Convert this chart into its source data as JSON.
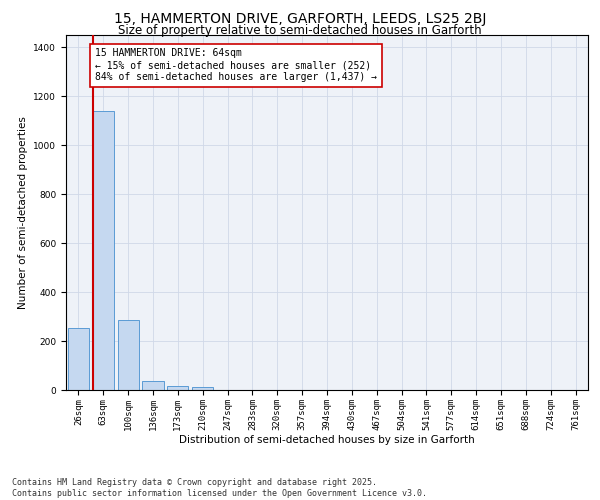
{
  "title_line1": "15, HAMMERTON DRIVE, GARFORTH, LEEDS, LS25 2BJ",
  "title_line2": "Size of property relative to semi-detached houses in Garforth",
  "xlabel": "Distribution of semi-detached houses by size in Garforth",
  "ylabel": "Number of semi-detached properties",
  "categories": [
    "26sqm",
    "63sqm",
    "100sqm",
    "136sqm",
    "173sqm",
    "210sqm",
    "247sqm",
    "283sqm",
    "320sqm",
    "357sqm",
    "394sqm",
    "430sqm",
    "467sqm",
    "504sqm",
    "541sqm",
    "577sqm",
    "614sqm",
    "651sqm",
    "688sqm",
    "724sqm",
    "761sqm"
  ],
  "values": [
    252,
    1140,
    285,
    38,
    18,
    12,
    0,
    0,
    0,
    0,
    0,
    0,
    0,
    0,
    0,
    0,
    0,
    0,
    0,
    0,
    0
  ],
  "bar_color": "#c5d8f0",
  "bar_edge_color": "#5b9bd5",
  "vline_color": "#cc0000",
  "annotation_text": "15 HAMMERTON DRIVE: 64sqm\n← 15% of semi-detached houses are smaller (252)\n84% of semi-detached houses are larger (1,437) →",
  "annotation_box_color": "#ffffff",
  "annotation_box_edge": "#cc0000",
  "ylim": [
    0,
    1450
  ],
  "yticks": [
    0,
    200,
    400,
    600,
    800,
    1000,
    1200,
    1400
  ],
  "grid_color": "#d0d8e8",
  "background_color": "#eef2f8",
  "footnote": "Contains HM Land Registry data © Crown copyright and database right 2025.\nContains public sector information licensed under the Open Government Licence v3.0.",
  "title_fontsize": 10,
  "subtitle_fontsize": 8.5,
  "axis_label_fontsize": 7.5,
  "tick_fontsize": 6.5,
  "annotation_fontsize": 7,
  "footnote_fontsize": 6
}
